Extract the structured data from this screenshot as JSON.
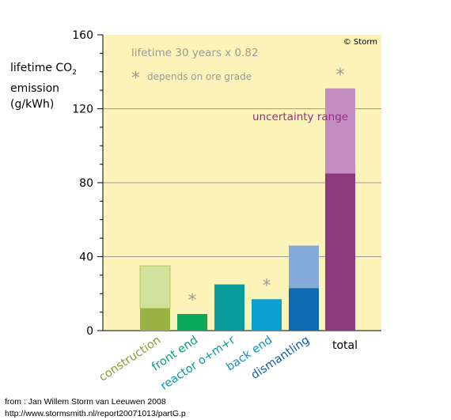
{
  "chart_data": {
    "type": "bar",
    "categories": [
      "construction",
      "front end",
      "reactor o+m+r",
      "back end",
      "dismantling",
      "total"
    ],
    "series": [
      {
        "values": [
          12,
          9,
          25,
          17,
          23,
          85
        ]
      },
      {
        "values": [
          23,
          0,
          0,
          0,
          23,
          46
        ]
      }
    ],
    "ylim": [
      0,
      160
    ],
    "yticks": [
      0,
      40,
      80,
      120,
      160
    ],
    "grid": true,
    "ylabel": [
      "lifetime CO",
      "2",
      "emission",
      "(g/kWh)"
    ],
    "annotations": {
      "lifetime": "lifetime 30 years x 0.82",
      "star_note": "depends on ore grade",
      "star_symbol": "*",
      "star_categories": [
        "front end",
        "back end",
        "total"
      ],
      "uncertainty": "uncertainty range",
      "copyright": "© Storm"
    },
    "colors": {
      "plot_bg": "#fbf3b8",
      "base": [
        "#98b243",
        "#0aa85a",
        "#0a9b9b",
        "#0aa0d0",
        "#0e6ab1",
        "#8b3a7d"
      ],
      "upper": [
        "#d2e19c",
        null,
        null,
        null,
        "#86aad8",
        "#c48ec0"
      ],
      "label": [
        "#8a9a36",
        "#0b9a86",
        "#0a9b9b",
        "#0a93c4",
        "#0e5ea8",
        "#000000"
      ],
      "annotation_gray": "#9a9a9a",
      "uncertainty_text": "#9a2b8a"
    }
  },
  "source": {
    "line1": "from : Jan Willem Storm van Leeuwen 2008",
    "line2": "http://www.stormsmith.nl/report20071013/partG.p"
  }
}
